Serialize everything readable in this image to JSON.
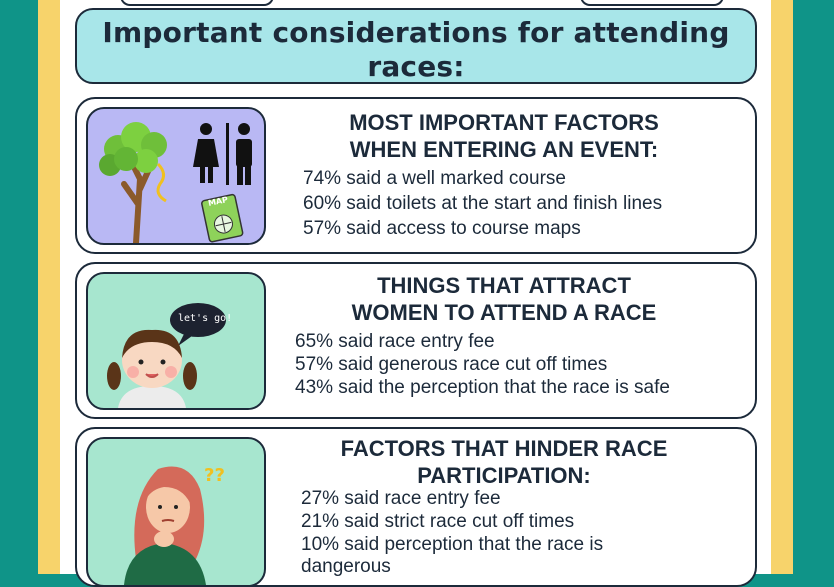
{
  "title": {
    "line1": "Important considerations for attending",
    "line2": "races:"
  },
  "cards": [
    {
      "heading_line1": "MOST IMPORTANT FACTORS",
      "heading_line2": "WHEN ENTERING AN EVENT:",
      "stats": [
        "74% said a well marked course",
        "60% said toilets at the start and finish lines",
        "57% said access to course maps"
      ],
      "illustration": "tree-toilets-map-icon",
      "map_label": "MAP"
    },
    {
      "heading_line1": "THINGS THAT ATTRACT",
      "heading_line2": "WOMEN TO ATTEND A RACE",
      "stats": [
        "65% said race entry fee",
        "57% said generous race cut off times",
        "43% said the perception that the race is safe"
      ],
      "illustration": "girl-speech-bubble-icon",
      "bubble_text": "let's go!"
    },
    {
      "heading_line1": "FACTORS THAT HINDER RACE",
      "heading_line2": "PARTICIPATION:",
      "stats": [
        "27% said race entry fee",
        "21% said strict race cut off times",
        "10% said perception that the race is",
        "dangerous"
      ],
      "illustration": "thinking-woman-icon"
    }
  ],
  "colors": {
    "background": "#0f9488",
    "accent_strip": "#f7d36b",
    "title_fill": "#a8e6e9",
    "text": "#1c2a3a",
    "card1_illustration": "#b9b8f4",
    "card2_illustration": "#a7e6cf"
  }
}
